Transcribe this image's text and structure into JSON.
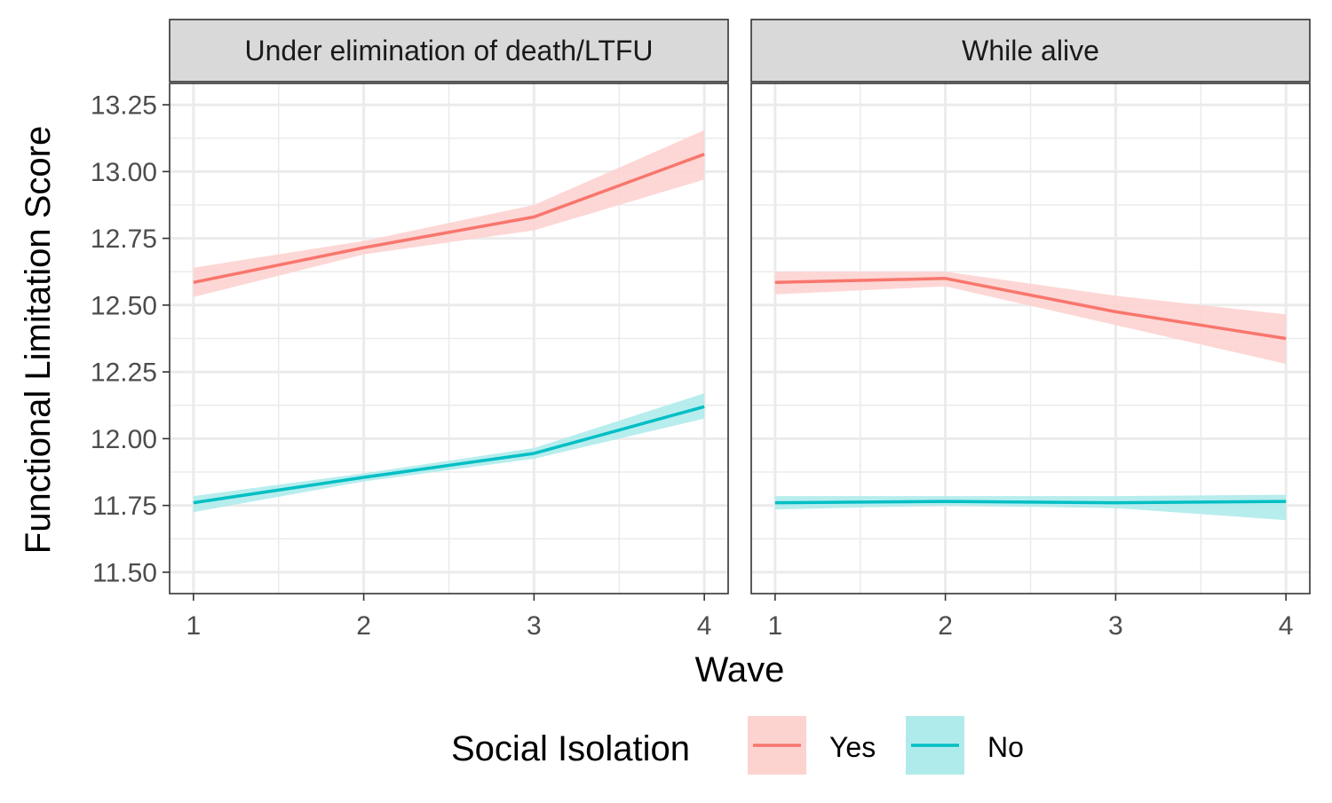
{
  "chart_data": {
    "type": "line",
    "xlabel": "Wave",
    "ylabel": "Functional Limitation Score",
    "xlim": [
      0.86,
      4.14
    ],
    "ylim": [
      11.42,
      13.33
    ],
    "x_ticks": [
      "1",
      "2",
      "3",
      "4"
    ],
    "y_ticks": [
      "11.50",
      "11.75",
      "12.00",
      "12.25",
      "12.50",
      "12.75",
      "13.00",
      "13.25"
    ],
    "grid": true,
    "legend": {
      "title": "Social Isolation",
      "position": "bottom",
      "entries": [
        {
          "label": "Yes",
          "color": "#F8766D",
          "fill": "#FDD3D0"
        },
        {
          "label": "No",
          "color": "#00BFC4",
          "fill": "#B0EBEC"
        }
      ]
    },
    "panels": [
      {
        "title": "Under elimination of death/LTFU",
        "series": [
          {
            "name": "Yes",
            "x": [
              1,
              2,
              3,
              4
            ],
            "y": [
              12.585,
              12.715,
              12.83,
              13.065
            ],
            "lower": [
              12.53,
              12.69,
              12.78,
              12.97
            ],
            "upper": [
              12.64,
              12.74,
              12.875,
              13.155
            ]
          },
          {
            "name": "No",
            "x": [
              1,
              2,
              3,
              4
            ],
            "y": [
              11.76,
              11.855,
              11.945,
              12.12
            ],
            "lower": [
              11.725,
              11.84,
              11.925,
              12.075
            ],
            "upper": [
              11.785,
              11.87,
              11.965,
              12.17
            ]
          }
        ]
      },
      {
        "title": "While alive",
        "series": [
          {
            "name": "Yes",
            "x": [
              1,
              2,
              3,
              4
            ],
            "y": [
              12.585,
              12.6,
              12.475,
              12.375
            ],
            "lower": [
              12.54,
              12.57,
              12.425,
              12.28
            ],
            "upper": [
              12.625,
              12.625,
              12.535,
              12.465
            ]
          },
          {
            "name": "No",
            "x": [
              1,
              2,
              3,
              4
            ],
            "y": [
              11.76,
              11.765,
              11.76,
              11.765
            ],
            "lower": [
              11.735,
              11.75,
              11.74,
              11.695
            ],
            "upper": [
              11.785,
              11.785,
              11.785,
              11.79
            ]
          }
        ]
      }
    ]
  }
}
